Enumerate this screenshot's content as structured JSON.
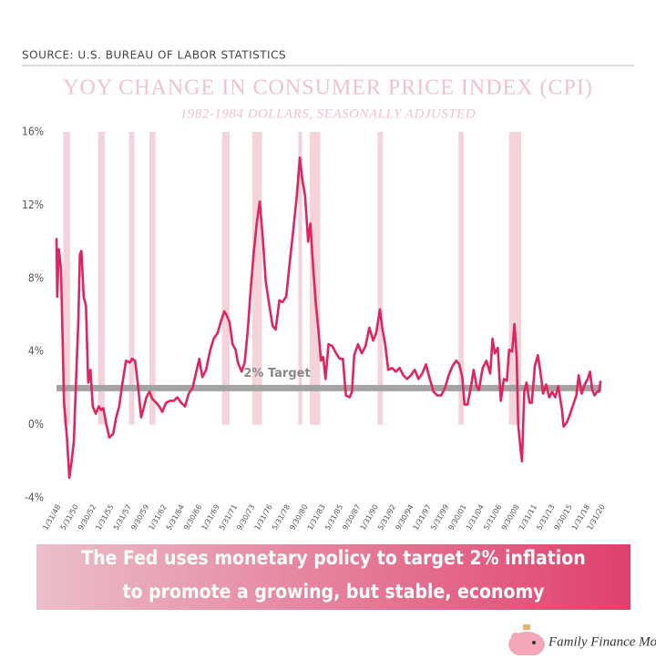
{
  "chart_data": {
    "type": "line",
    "source": "SOURCE: U.S. BUREAU OF LABOR STATISTICS",
    "title": "YOY CHANGE IN CONSUMER PRICE INDEX (CPI)",
    "subtitle": "1982-1984 DOLLARS, SEASONALLY ADJUSTED",
    "color": "#e0245e",
    "band_color": "#f4d3da",
    "target_color": "#a3a3a3",
    "xlim": [
      1948.0,
      2020.1
    ],
    "ylim": [
      -4,
      16
    ],
    "grid": false,
    "yticks": [
      {
        "value": -4,
        "label": "-4%"
      },
      {
        "value": 0,
        "label": "0%"
      },
      {
        "value": 4,
        "label": "4%"
      },
      {
        "value": 8,
        "label": "8%"
      },
      {
        "value": 12,
        "label": "12%"
      },
      {
        "value": 16,
        "label": "16%"
      }
    ],
    "xticks": [
      {
        "value": 1948.08,
        "label": "1/31/48"
      },
      {
        "value": 1950.42,
        "label": "5/31/50"
      },
      {
        "value": 1952.75,
        "label": "9/30/52"
      },
      {
        "value": 1955.08,
        "label": "1/31/55"
      },
      {
        "value": 1957.42,
        "label": "5/31/57"
      },
      {
        "value": 1959.75,
        "label": "9/30/59"
      },
      {
        "value": 1962.08,
        "label": "1/31/62"
      },
      {
        "value": 1964.42,
        "label": "5/31/64"
      },
      {
        "value": 1966.75,
        "label": "9/30/66"
      },
      {
        "value": 1969.08,
        "label": "1/31/69"
      },
      {
        "value": 1971.42,
        "label": "5/31/71"
      },
      {
        "value": 1973.75,
        "label": "9/30/73"
      },
      {
        "value": 1976.08,
        "label": "1/31/76"
      },
      {
        "value": 1978.42,
        "label": "5/31/78"
      },
      {
        "value": 1980.75,
        "label": "9/30/80"
      },
      {
        "value": 1983.08,
        "label": "1/31/83"
      },
      {
        "value": 1985.42,
        "label": "5/31/85"
      },
      {
        "value": 1987.75,
        "label": "9/30/87"
      },
      {
        "value": 1990.08,
        "label": "1/31/90"
      },
      {
        "value": 1992.42,
        "label": "5/31/92"
      },
      {
        "value": 1994.75,
        "label": "9/30/94"
      },
      {
        "value": 1997.08,
        "label": "1/31/97"
      },
      {
        "value": 1999.42,
        "label": "5/31/99"
      },
      {
        "value": 2001.75,
        "label": "9/30/01"
      },
      {
        "value": 2004.08,
        "label": "1/31/04"
      },
      {
        "value": 2006.42,
        "label": "5/31/06"
      },
      {
        "value": 2008.75,
        "label": "9/30/08"
      },
      {
        "value": 2011.08,
        "label": "1/31/11"
      },
      {
        "value": 2013.42,
        "label": "5/31/13"
      },
      {
        "value": 2015.75,
        "label": "9/30/15"
      },
      {
        "value": 2018.08,
        "label": "1/31/18"
      },
      {
        "value": 2020.08,
        "label": "1/31/20"
      }
    ],
    "shaded_ranges": [
      [
        1948.9,
        1949.8
      ],
      [
        1953.5,
        1954.4
      ],
      [
        1957.6,
        1958.3
      ],
      [
        1960.3,
        1961.1
      ],
      [
        1969.9,
        1970.9
      ],
      [
        1973.9,
        1975.2
      ],
      [
        1980.0,
        1980.5
      ],
      [
        1981.5,
        1982.9
      ],
      [
        1990.5,
        1991.2
      ],
      [
        2001.2,
        2001.9
      ],
      [
        2007.9,
        2009.5
      ]
    ],
    "target": {
      "value": 2,
      "label": "2% Target"
    },
    "x": [
      1948.0,
      1948.1,
      1948.3,
      1948.6,
      1949.0,
      1949.4,
      1949.7,
      1950.0,
      1950.3,
      1950.6,
      1950.9,
      1951.1,
      1951.3,
      1951.6,
      1951.9,
      1952.2,
      1952.5,
      1952.8,
      1953.2,
      1953.6,
      1953.9,
      1954.2,
      1954.6,
      1955.0,
      1955.5,
      1955.9,
      1956.3,
      1956.7,
      1957.2,
      1957.7,
      1958.0,
      1958.4,
      1958.8,
      1959.2,
      1959.6,
      1959.9,
      1960.3,
      1960.7,
      1961.2,
      1961.6,
      1962.0,
      1962.5,
      1963.0,
      1963.5,
      1964.0,
      1964.5,
      1965.0,
      1965.5,
      1966.0,
      1966.5,
      1966.9,
      1967.3,
      1967.8,
      1968.3,
      1968.8,
      1969.3,
      1969.8,
      1970.2,
      1970.5,
      1970.9,
      1971.3,
      1971.7,
      1972.0,
      1972.5,
      1972.9,
      1973.3,
      1973.7,
      1974.1,
      1974.5,
      1974.9,
      1975.3,
      1975.7,
      1976.1,
      1976.6,
      1977.0,
      1977.5,
      1977.9,
      1978.4,
      1978.9,
      1979.3,
      1979.8,
      1980.2,
      1980.5,
      1980.9,
      1981.3,
      1981.6,
      1981.9,
      1982.3,
      1982.7,
      1983.0,
      1983.3,
      1983.6,
      1984.0,
      1984.5,
      1985.0,
      1985.5,
      1985.9,
      1986.3,
      1986.8,
      1987.1,
      1987.4,
      1987.9,
      1988.4,
      1988.9,
      1989.4,
      1989.9,
      1990.3,
      1990.8,
      1991.1,
      1991.5,
      1991.9,
      1992.4,
      1992.9,
      1993.4,
      1993.9,
      1994.4,
      1994.9,
      1995.4,
      1995.9,
      1996.4,
      1996.9,
      1997.4,
      1997.9,
      1998.4,
      1998.9,
      1999.4,
      1999.9,
      2000.4,
      2000.9,
      2001.3,
      2001.7,
      2002.0,
      2002.4,
      2002.9,
      2003.2,
      2003.6,
      2003.9,
      2004.4,
      2004.9,
      2005.4,
      2005.7,
      2006.0,
      2006.4,
      2006.8,
      2007.2,
      2007.6,
      2007.9,
      2008.3,
      2008.6,
      2008.9,
      2009.1,
      2009.4,
      2009.6,
      2009.9,
      2010.2,
      2010.6,
      2010.9,
      2011.3,
      2011.7,
      2012.0,
      2012.4,
      2012.8,
      2013.2,
      2013.6,
      2014.0,
      2014.4,
      2014.9,
      2015.1,
      2015.5,
      2015.9,
      2016.3,
      2016.8,
      2017.1,
      2017.5,
      2017.9,
      2018.3,
      2018.6,
      2018.9,
      2019.2,
      2019.5,
      2019.8,
      2020.0
    ],
    "values": [
      10.2,
      7.0,
      9.6,
      8.5,
      1.2,
      -0.8,
      -2.9,
      -2.0,
      -0.9,
      2.5,
      5.8,
      9.3,
      9.5,
      7.0,
      6.5,
      2.3,
      3.0,
      1.0,
      0.6,
      1.0,
      0.8,
      0.9,
      0.0,
      -0.7,
      -0.5,
      0.4,
      1.0,
      2.2,
      3.5,
      3.4,
      3.6,
      3.5,
      2.1,
      0.4,
      1.0,
      1.5,
      1.8,
      1.4,
      1.2,
      1.0,
      0.7,
      1.2,
      1.3,
      1.3,
      1.5,
      1.2,
      1.0,
      1.7,
      2.0,
      2.9,
      3.6,
      2.6,
      3.0,
      4.0,
      4.7,
      5.0,
      5.7,
      6.2,
      6.0,
      5.6,
      4.4,
      4.1,
      3.4,
      2.9,
      3.4,
      5.1,
      7.4,
      9.4,
      11.0,
      12.2,
      10.2,
      7.8,
      6.7,
      5.4,
      5.2,
      6.8,
      6.7,
      7.0,
      9.0,
      10.5,
      12.5,
      14.6,
      13.5,
      12.5,
      10.0,
      11.0,
      9.0,
      6.7,
      5.0,
      3.5,
      3.7,
      2.5,
      4.4,
      4.3,
      3.9,
      3.6,
      3.6,
      1.6,
      1.5,
      1.8,
      3.8,
      4.4,
      3.9,
      4.3,
      5.3,
      4.6,
      5.0,
      6.3,
      5.3,
      4.4,
      3.0,
      3.1,
      2.9,
      3.1,
      2.7,
      2.5,
      2.7,
      3.0,
      2.5,
      2.8,
      3.3,
      2.5,
      1.8,
      1.6,
      1.6,
      2.0,
      2.7,
      3.2,
      3.5,
      3.3,
      2.6,
      1.1,
      1.1,
      2.2,
      3.0,
      2.1,
      1.9,
      3.1,
      3.5,
      2.8,
      4.7,
      3.9,
      4.2,
      1.3,
      2.5,
      2.4,
      4.1,
      4.0,
      5.5,
      3.7,
      0.0,
      -1.3,
      -2.0,
      1.8,
      2.3,
      1.2,
      1.2,
      3.2,
      3.8,
      3.0,
      1.7,
      2.2,
      1.5,
      1.8,
      1.5,
      2.1,
      0.8,
      -0.1,
      0.1,
      0.5,
      1.0,
      1.6,
      2.7,
      1.7,
      2.2,
      2.5,
      2.9,
      1.9,
      1.6,
      1.8,
      1.8,
      2.4
    ],
    "note": [
      "The Fed uses monetary policy to target 2% inflation",
      "to promote a growing, but stable, economy"
    ],
    "brand": "Family Finance Mom"
  }
}
